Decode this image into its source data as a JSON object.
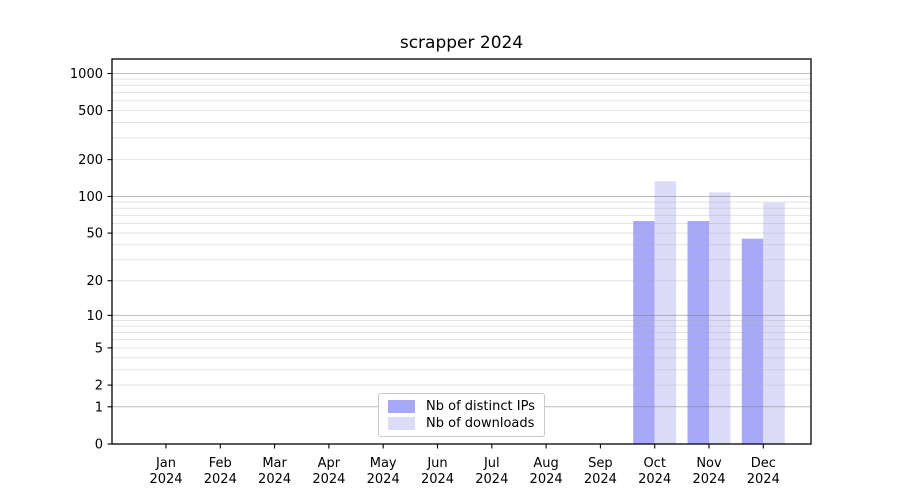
{
  "chart_data": {
    "type": "bar",
    "title": "scrapper 2024",
    "categories": [
      "Jan 2024",
      "Feb 2024",
      "Mar 2024",
      "Apr 2024",
      "May 2024",
      "Jun 2024",
      "Jul 2024",
      "Aug 2024",
      "Sep 2024",
      "Oct 2024",
      "Nov 2024",
      "Dec 2024"
    ],
    "series": [
      {
        "name": "Nb of distinct IPs",
        "color": "#a8a8f8",
        "values": [
          0,
          0,
          0,
          0,
          0,
          0,
          0,
          0,
          0,
          63,
          63,
          45
        ]
      },
      {
        "name": "Nb of downloads",
        "color": "#dcdcf8",
        "values": [
          0,
          0,
          0,
          0,
          0,
          0,
          0,
          0,
          0,
          133,
          108,
          89
        ]
      }
    ],
    "xlabel": "",
    "ylabel": "",
    "y_scale": "log1p",
    "y_ticks": [
      0,
      1,
      2,
      5,
      10,
      20,
      50,
      100,
      200,
      500,
      1000
    ],
    "y_major_grid_values": [
      1,
      10,
      100,
      1000
    ],
    "ylim": [
      0,
      1310
    ],
    "grid": {
      "major_color": "#777777",
      "minor_color": "#aaaaaa"
    },
    "legend": {
      "position": "lower center",
      "entries": [
        "Nb of distinct IPs",
        "Nb of downloads"
      ]
    },
    "axis_color": "#000000",
    "background": "#ffffff"
  }
}
